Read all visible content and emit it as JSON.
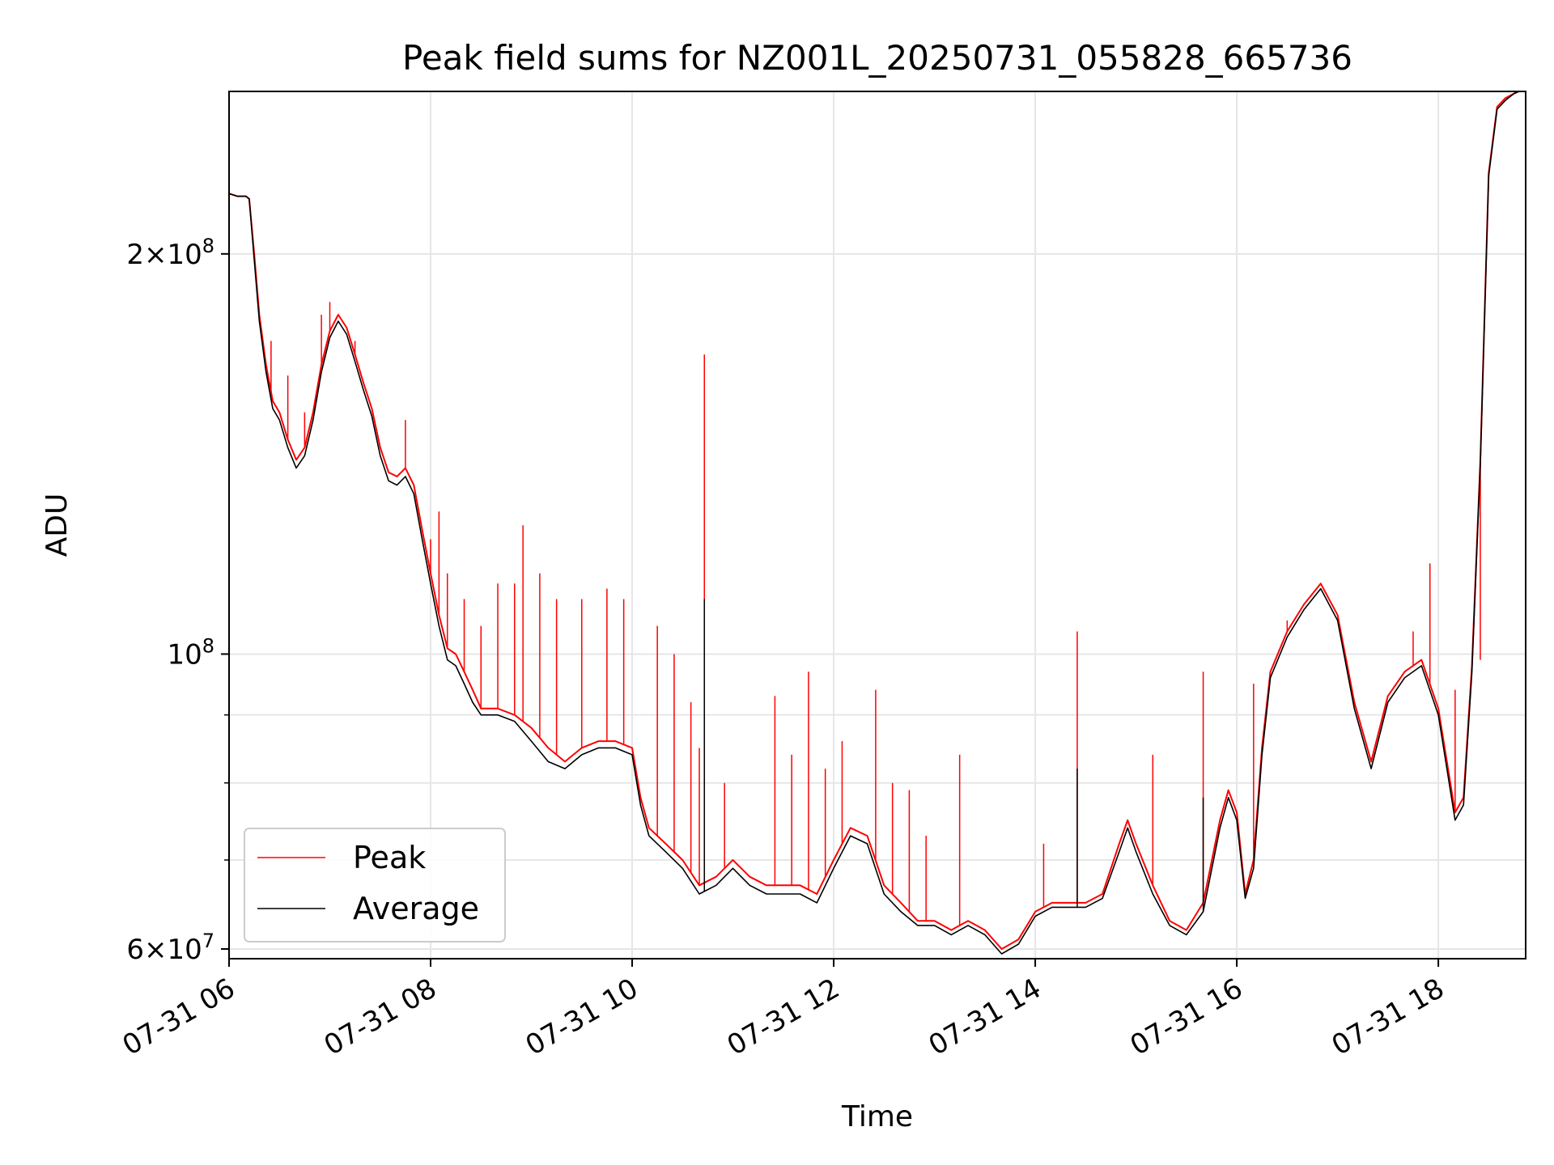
{
  "chart_data": {
    "type": "line",
    "title": "Peak field sums for NZ001L_20250731_055828_665736",
    "xlabel": "Time",
    "ylabel": "ADU",
    "yscale": "log",
    "grid": true,
    "legend_placement": "lower-left",
    "xlim": [
      "2025-07-31 06:00",
      "2025-07-31 18:52"
    ],
    "ylim": [
      59000000,
      265000000
    ],
    "x_ticks": [
      "2025-07-31 06:00",
      "2025-07-31 08:00",
      "2025-07-31 10:00",
      "2025-07-31 12:00",
      "2025-07-31 14:00",
      "2025-07-31 16:00",
      "2025-07-31 18:00"
    ],
    "x_tick_labels": [
      "07-31 06",
      "07-31 08",
      "07-31 10",
      "07-31 12",
      "07-31 14",
      "07-31 16",
      "07-31 18"
    ],
    "y_ticks_major": [
      {
        "value": 60000000,
        "mantissa": "6",
        "exponent": "7"
      },
      {
        "value": 100000000,
        "mantissa": "",
        "exponent": "8"
      },
      {
        "value": 200000000,
        "mantissa": "2",
        "exponent": "8"
      }
    ],
    "y_ticks_minor": [
      70000000,
      80000000,
      90000000
    ],
    "base_label": "10",
    "times_sign": "×",
    "series": [
      {
        "name": "Peak",
        "color": "#ff0000",
        "points": [
          [
            "06:00",
            222000000
          ],
          [
            "06:05",
            221000000
          ],
          [
            "06:10",
            221000000
          ],
          [
            "06:12",
            220000000
          ],
          [
            "06:15",
            200000000
          ],
          [
            "06:18",
            180000000
          ],
          [
            "06:22",
            165000000
          ],
          [
            "06:26",
            155000000
          ],
          [
            "06:30",
            152000000
          ],
          [
            "06:35",
            145000000
          ],
          [
            "06:40",
            140000000
          ],
          [
            "06:45",
            143000000
          ],
          [
            "06:50",
            152000000
          ],
          [
            "06:55",
            165000000
          ],
          [
            "07:00",
            175000000
          ],
          [
            "07:05",
            180000000
          ],
          [
            "07:10",
            176000000
          ],
          [
            "07:15",
            168000000
          ],
          [
            "07:20",
            160000000
          ],
          [
            "07:25",
            153000000
          ],
          [
            "07:30",
            143000000
          ],
          [
            "07:35",
            137000000
          ],
          [
            "07:40",
            136000000
          ],
          [
            "07:45",
            138000000
          ],
          [
            "07:50",
            134000000
          ],
          [
            "07:55",
            124000000
          ],
          [
            "08:00",
            115000000
          ],
          [
            "08:05",
            107000000
          ],
          [
            "08:10",
            101000000
          ],
          [
            "08:15",
            100000000
          ],
          [
            "08:20",
            97000000
          ],
          [
            "08:25",
            94000000
          ],
          [
            "08:30",
            91000000
          ],
          [
            "08:40",
            91000000
          ],
          [
            "08:50",
            90000000
          ],
          [
            "09:00",
            88000000
          ],
          [
            "09:10",
            85000000
          ],
          [
            "09:20",
            83000000
          ],
          [
            "09:30",
            85000000
          ],
          [
            "09:40",
            86000000
          ],
          [
            "09:50",
            86000000
          ],
          [
            "10:00",
            85000000
          ],
          [
            "10:05",
            78000000
          ],
          [
            "10:10",
            74000000
          ],
          [
            "10:20",
            72000000
          ],
          [
            "10:30",
            70000000
          ],
          [
            "10:40",
            67000000
          ],
          [
            "10:50",
            68000000
          ],
          [
            "11:00",
            70000000
          ],
          [
            "11:10",
            68000000
          ],
          [
            "11:20",
            67000000
          ],
          [
            "11:30",
            67000000
          ],
          [
            "11:40",
            67000000
          ],
          [
            "11:50",
            66000000
          ],
          [
            "12:00",
            70000000
          ],
          [
            "12:10",
            74000000
          ],
          [
            "12:20",
            73000000
          ],
          [
            "12:30",
            67000000
          ],
          [
            "12:40",
            65000000
          ],
          [
            "12:50",
            63000000
          ],
          [
            "13:00",
            63000000
          ],
          [
            "13:10",
            62000000
          ],
          [
            "13:20",
            63000000
          ],
          [
            "13:30",
            62000000
          ],
          [
            "13:40",
            60000000
          ],
          [
            "13:50",
            61000000
          ],
          [
            "14:00",
            64000000
          ],
          [
            "14:10",
            65000000
          ],
          [
            "14:20",
            65000000
          ],
          [
            "14:30",
            65000000
          ],
          [
            "14:40",
            66000000
          ],
          [
            "14:50",
            72000000
          ],
          [
            "14:55",
            75000000
          ],
          [
            "15:00",
            72000000
          ],
          [
            "15:10",
            67000000
          ],
          [
            "15:20",
            63000000
          ],
          [
            "15:30",
            62000000
          ],
          [
            "15:40",
            65000000
          ],
          [
            "15:50",
            75000000
          ],
          [
            "15:55",
            79000000
          ],
          [
            "16:00",
            76000000
          ],
          [
            "16:05",
            66000000
          ],
          [
            "16:10",
            70000000
          ],
          [
            "16:15",
            85000000
          ],
          [
            "16:20",
            97000000
          ],
          [
            "16:30",
            104000000
          ],
          [
            "16:40",
            109000000
          ],
          [
            "16:50",
            113000000
          ],
          [
            "17:00",
            107000000
          ],
          [
            "17:10",
            92000000
          ],
          [
            "17:20",
            83000000
          ],
          [
            "17:30",
            93000000
          ],
          [
            "17:40",
            97000000
          ],
          [
            "17:50",
            99000000
          ],
          [
            "18:00",
            91000000
          ],
          [
            "18:10",
            76000000
          ],
          [
            "18:15",
            78000000
          ],
          [
            "18:20",
            98000000
          ],
          [
            "18:25",
            140000000
          ],
          [
            "18:30",
            230000000
          ],
          [
            "18:35",
            258000000
          ],
          [
            "18:40",
            262000000
          ],
          [
            "18:45",
            264000000
          ],
          [
            "18:48",
            265000000
          ],
          [
            "18:52",
            265000000
          ]
        ],
        "spikes": [
          [
            "06:25",
            172000000
          ],
          [
            "06:35",
            162000000
          ],
          [
            "06:45",
            152000000
          ],
          [
            "06:55",
            180000000
          ],
          [
            "07:00",
            184000000
          ],
          [
            "07:15",
            172000000
          ],
          [
            "07:45",
            150000000
          ],
          [
            "08:00",
            122000000
          ],
          [
            "08:05",
            128000000
          ],
          [
            "08:10",
            115000000
          ],
          [
            "08:20",
            110000000
          ],
          [
            "08:30",
            105000000
          ],
          [
            "08:40",
            113000000
          ],
          [
            "08:50",
            113000000
          ],
          [
            "08:55",
            125000000
          ],
          [
            "09:05",
            115000000
          ],
          [
            "09:15",
            110000000
          ],
          [
            "09:30",
            110000000
          ],
          [
            "09:45",
            112000000
          ],
          [
            "09:55",
            110000000
          ],
          [
            "10:15",
            105000000
          ],
          [
            "10:25",
            100000000
          ],
          [
            "10:35",
            92000000
          ],
          [
            "10:40",
            85000000
          ],
          [
            "10:43",
            168000000
          ],
          [
            "10:55",
            80000000
          ],
          [
            "11:25",
            93000000
          ],
          [
            "11:35",
            84000000
          ],
          [
            "11:45",
            97000000
          ],
          [
            "11:55",
            82000000
          ],
          [
            "12:05",
            86000000
          ],
          [
            "12:25",
            94000000
          ],
          [
            "12:35",
            80000000
          ],
          [
            "12:45",
            79000000
          ],
          [
            "12:55",
            73000000
          ],
          [
            "13:15",
            84000000
          ],
          [
            "14:05",
            72000000
          ],
          [
            "14:25",
            104000000
          ],
          [
            "15:10",
            84000000
          ],
          [
            "15:40",
            97000000
          ],
          [
            "16:10",
            95000000
          ],
          [
            "16:30",
            106000000
          ],
          [
            "17:45",
            104000000
          ],
          [
            "17:55",
            117000000
          ],
          [
            "18:10",
            94000000
          ],
          [
            "18:25",
            99000000
          ]
        ]
      },
      {
        "name": "Average",
        "color": "#000000",
        "points": [
          [
            "06:00",
            222000000
          ],
          [
            "06:05",
            221000000
          ],
          [
            "06:10",
            221000000
          ],
          [
            "06:12",
            220000000
          ],
          [
            "06:15",
            198000000
          ],
          [
            "06:18",
            178000000
          ],
          [
            "06:22",
            163000000
          ],
          [
            "06:26",
            153000000
          ],
          [
            "06:30",
            150000000
          ],
          [
            "06:35",
            143000000
          ],
          [
            "06:40",
            138000000
          ],
          [
            "06:45",
            141000000
          ],
          [
            "06:50",
            150000000
          ],
          [
            "06:55",
            163000000
          ],
          [
            "07:00",
            173000000
          ],
          [
            "07:05",
            178000000
          ],
          [
            "07:10",
            174000000
          ],
          [
            "07:15",
            166000000
          ],
          [
            "07:20",
            158000000
          ],
          [
            "07:25",
            151000000
          ],
          [
            "07:30",
            141000000
          ],
          [
            "07:35",
            135000000
          ],
          [
            "07:40",
            134000000
          ],
          [
            "07:45",
            136000000
          ],
          [
            "07:50",
            132000000
          ],
          [
            "07:55",
            122000000
          ],
          [
            "08:00",
            113000000
          ],
          [
            "08:05",
            105000000
          ],
          [
            "08:10",
            99000000
          ],
          [
            "08:15",
            98000000
          ],
          [
            "08:20",
            95000000
          ],
          [
            "08:25",
            92000000
          ],
          [
            "08:30",
            90000000
          ],
          [
            "08:40",
            90000000
          ],
          [
            "08:50",
            89000000
          ],
          [
            "09:00",
            86000000
          ],
          [
            "09:10",
            83000000
          ],
          [
            "09:20",
            82000000
          ],
          [
            "09:30",
            84000000
          ],
          [
            "09:40",
            85000000
          ],
          [
            "09:50",
            85000000
          ],
          [
            "10:00",
            84000000
          ],
          [
            "10:05",
            77000000
          ],
          [
            "10:10",
            73000000
          ],
          [
            "10:20",
            71000000
          ],
          [
            "10:30",
            69000000
          ],
          [
            "10:40",
            66000000
          ],
          [
            "10:50",
            67000000
          ],
          [
            "11:00",
            69000000
          ],
          [
            "11:10",
            67000000
          ],
          [
            "11:20",
            66000000
          ],
          [
            "11:30",
            66000000
          ],
          [
            "11:40",
            66000000
          ],
          [
            "11:50",
            65000000
          ],
          [
            "12:00",
            69000000
          ],
          [
            "12:10",
            73000000
          ],
          [
            "12:20",
            72000000
          ],
          [
            "12:30",
            66000000
          ],
          [
            "12:40",
            64000000
          ],
          [
            "12:50",
            62500000
          ],
          [
            "13:00",
            62500000
          ],
          [
            "13:10",
            61500000
          ],
          [
            "13:20",
            62500000
          ],
          [
            "13:30",
            61500000
          ],
          [
            "13:40",
            59500000
          ],
          [
            "13:50",
            60500000
          ],
          [
            "14:00",
            63500000
          ],
          [
            "14:10",
            64500000
          ],
          [
            "14:20",
            64500000
          ],
          [
            "14:30",
            64500000
          ],
          [
            "14:40",
            65500000
          ],
          [
            "14:50",
            71000000
          ],
          [
            "14:55",
            74000000
          ],
          [
            "15:00",
            71000000
          ],
          [
            "15:10",
            66000000
          ],
          [
            "15:20",
            62500000
          ],
          [
            "15:30",
            61500000
          ],
          [
            "15:40",
            64000000
          ],
          [
            "15:50",
            74000000
          ],
          [
            "15:55",
            78000000
          ],
          [
            "16:00",
            75000000
          ],
          [
            "16:05",
            65500000
          ],
          [
            "16:10",
            69000000
          ],
          [
            "16:15",
            84000000
          ],
          [
            "16:20",
            96000000
          ],
          [
            "16:30",
            103000000
          ],
          [
            "16:40",
            108000000
          ],
          [
            "16:50",
            112000000
          ],
          [
            "17:00",
            106000000
          ],
          [
            "17:10",
            91000000
          ],
          [
            "17:20",
            82000000
          ],
          [
            "17:30",
            92000000
          ],
          [
            "17:40",
            96000000
          ],
          [
            "17:50",
            98000000
          ],
          [
            "18:00",
            90000000
          ],
          [
            "18:10",
            75000000
          ],
          [
            "18:15",
            77000000
          ],
          [
            "18:20",
            97000000
          ],
          [
            "18:25",
            139000000
          ],
          [
            "18:30",
            229000000
          ],
          [
            "18:35",
            257000000
          ],
          [
            "18:40",
            261000000
          ],
          [
            "18:45",
            264000000
          ],
          [
            "18:48",
            265000000
          ],
          [
            "18:52",
            265000000
          ]
        ],
        "spikes": [
          [
            "10:43",
            110000000
          ],
          [
            "14:25",
            82000000
          ],
          [
            "15:40",
            78000000
          ]
        ]
      }
    ]
  }
}
